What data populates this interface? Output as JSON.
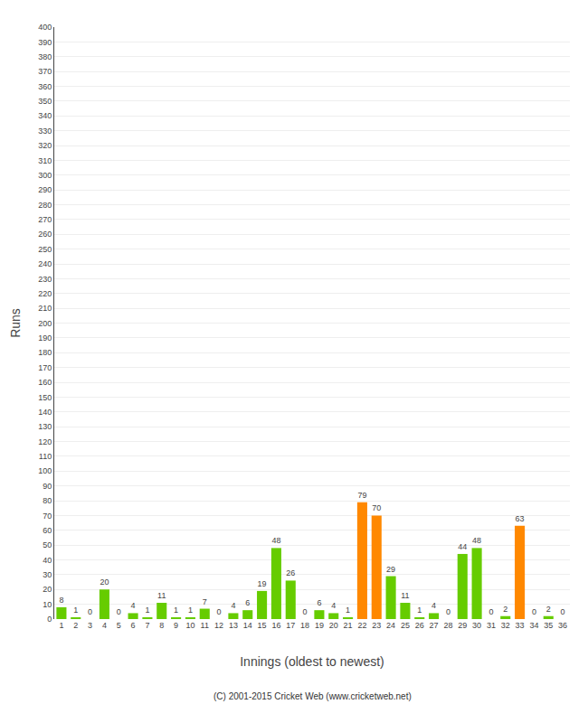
{
  "chart_data": {
    "type": "bar",
    "xlabel": "Innings (oldest to newest)",
    "ylabel": "Runs",
    "categories": [
      "1",
      "2",
      "3",
      "4",
      "5",
      "6",
      "7",
      "8",
      "9",
      "10",
      "11",
      "12",
      "13",
      "14",
      "15",
      "16",
      "17",
      "18",
      "19",
      "20",
      "21",
      "22",
      "23",
      "24",
      "25",
      "26",
      "27",
      "28",
      "29",
      "30",
      "31",
      "32",
      "33",
      "34",
      "35",
      "36"
    ],
    "values": [
      8,
      1,
      0,
      20,
      0,
      4,
      1,
      11,
      1,
      1,
      7,
      0,
      4,
      6,
      19,
      48,
      26,
      0,
      6,
      4,
      1,
      79,
      70,
      29,
      11,
      1,
      4,
      0,
      44,
      48,
      0,
      2,
      63,
      0,
      2,
      0
    ],
    "colors": [
      "#66cc00",
      "#66cc00",
      "#66cc00",
      "#66cc00",
      "#66cc00",
      "#66cc00",
      "#66cc00",
      "#66cc00",
      "#66cc00",
      "#66cc00",
      "#66cc00",
      "#66cc00",
      "#66cc00",
      "#66cc00",
      "#66cc00",
      "#66cc00",
      "#66cc00",
      "#66cc00",
      "#66cc00",
      "#66cc00",
      "#66cc00",
      "#ff8800",
      "#ff8800",
      "#66cc00",
      "#66cc00",
      "#66cc00",
      "#66cc00",
      "#66cc00",
      "#66cc00",
      "#66cc00",
      "#66cc00",
      "#66cc00",
      "#ff8800",
      "#66cc00",
      "#66cc00",
      "#66cc00"
    ],
    "ylim": [
      0,
      400
    ],
    "yticks": [
      0,
      10,
      20,
      30,
      40,
      50,
      60,
      70,
      80,
      90,
      100,
      110,
      120,
      130,
      140,
      150,
      160,
      170,
      180,
      190,
      200,
      210,
      220,
      230,
      240,
      250,
      260,
      270,
      280,
      290,
      300,
      310,
      320,
      330,
      340,
      350,
      360,
      370,
      380,
      390,
      400
    ],
    "grid": true,
    "data_labels": true,
    "annotations": [
      "(C) 2001-2015 Cricket Web (www.cricketweb.net)"
    ]
  }
}
